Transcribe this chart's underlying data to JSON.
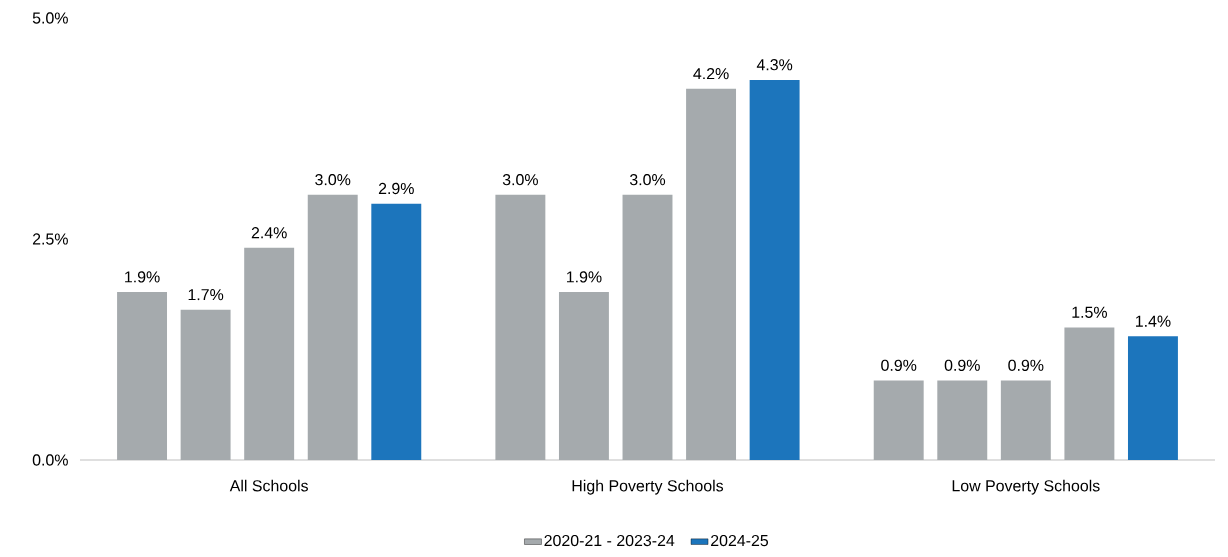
{
  "chart_data": {
    "type": "bar",
    "categories": [
      "All Schools",
      "High Poverty Schools",
      "Low Poverty Schools"
    ],
    "series": [
      {
        "name": "2020-21 - 2023-24",
        "color": "#a5aaad",
        "values": [
          1.9,
          3.0,
          0.9
        ],
        "value_labels": [
          "1.9%",
          "3.0%",
          "0.9%"
        ]
      },
      {
        "color": "#a5aaad",
        "values": [
          1.7,
          1.9,
          0.9
        ],
        "value_labels": [
          "1.7%",
          "1.9%",
          "0.9%"
        ]
      },
      {
        "color": "#a5aaad",
        "values": [
          2.4,
          3.0,
          0.9
        ],
        "value_labels": [
          "2.4%",
          "3.0%",
          "0.9%"
        ]
      },
      {
        "color": "#a5aaad",
        "values": [
          3.0,
          4.2,
          1.5
        ],
        "value_labels": [
          "3.0%",
          "4.2%",
          "1.5%"
        ]
      },
      {
        "name": "2024-25",
        "color": "#1c75bc",
        "values": [
          2.9,
          4.3,
          1.4
        ],
        "value_labels": [
          "2.9%",
          "4.3%",
          "1.4%"
        ]
      }
    ],
    "ylim": [
      0,
      5
    ],
    "yticks": [
      {
        "value": 0,
        "label": "0.0%"
      },
      {
        "value": 2.5,
        "label": "2.5%"
      },
      {
        "value": 5,
        "label": "5.0%"
      }
    ],
    "legend": "bottom"
  }
}
